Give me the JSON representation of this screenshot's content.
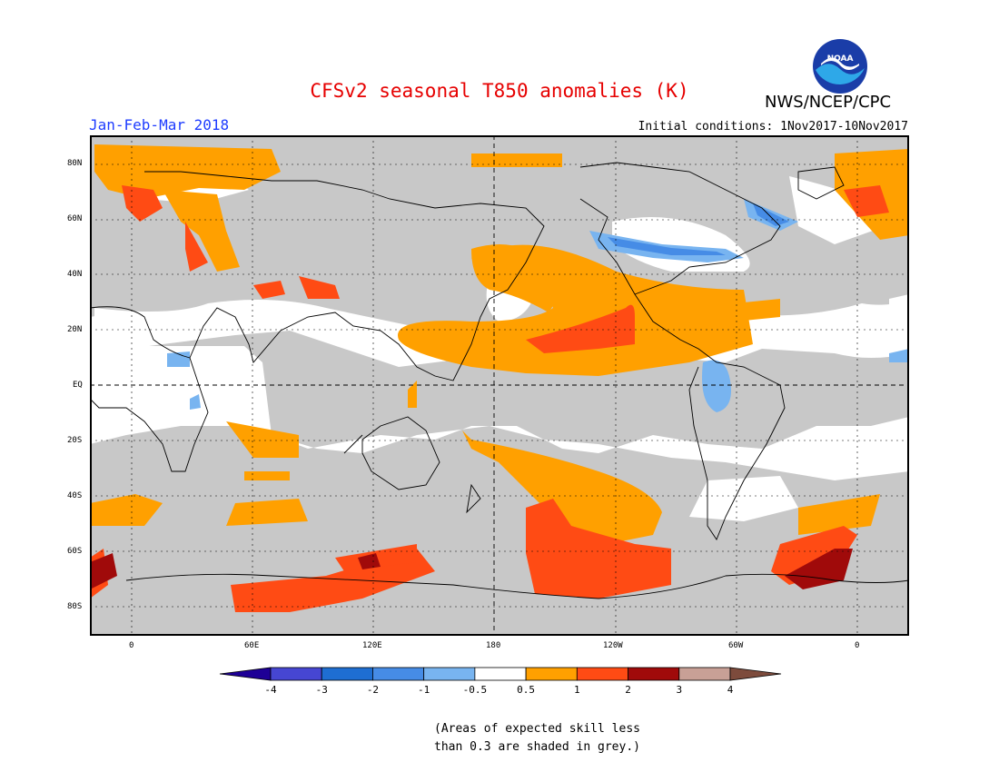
{
  "title": "CFSv2 seasonal T850 anomalies (K)",
  "period": "Jan-Feb-Mar 2018",
  "initial_conditions": "Initial conditions: 1Nov2017-10Nov2017",
  "agency": "NWS/NCEP/CPC",
  "logo_text": "NOAA",
  "map": {
    "lat_labels": [
      "80N",
      "60N",
      "40N",
      "20N",
      "EQ",
      "20S",
      "40S",
      "60S",
      "80S"
    ],
    "lon_labels": [
      "0",
      "60E",
      "120E",
      "180",
      "120W",
      "60W",
      "0"
    ]
  },
  "colorbar": {
    "ticks": [
      "-4",
      "-3",
      "-2",
      "-1",
      "-0.5",
      "0.5",
      "1",
      "2",
      "3",
      "4"
    ],
    "colors": [
      "#1e0096",
      "#4646d2",
      "#1e6ed2",
      "#468ce6",
      "#78b4f0",
      "#ffffff",
      "#ffa000",
      "#ff4b14",
      "#a00a0a",
      "#c8a096",
      "#7d4b3c"
    ]
  },
  "note": [
    "(Areas of expected skill less",
    "than 0.3 are shaded in grey.)"
  ],
  "colors": {
    "title": "#e60000",
    "period": "#1e3cff",
    "grey_skill": "#c8c8c8",
    "orange": "#ffa000",
    "red": "#ff4b14",
    "dark_red": "#a00a0a",
    "light_blue": "#78b4f0",
    "blue": "#468ce6"
  }
}
